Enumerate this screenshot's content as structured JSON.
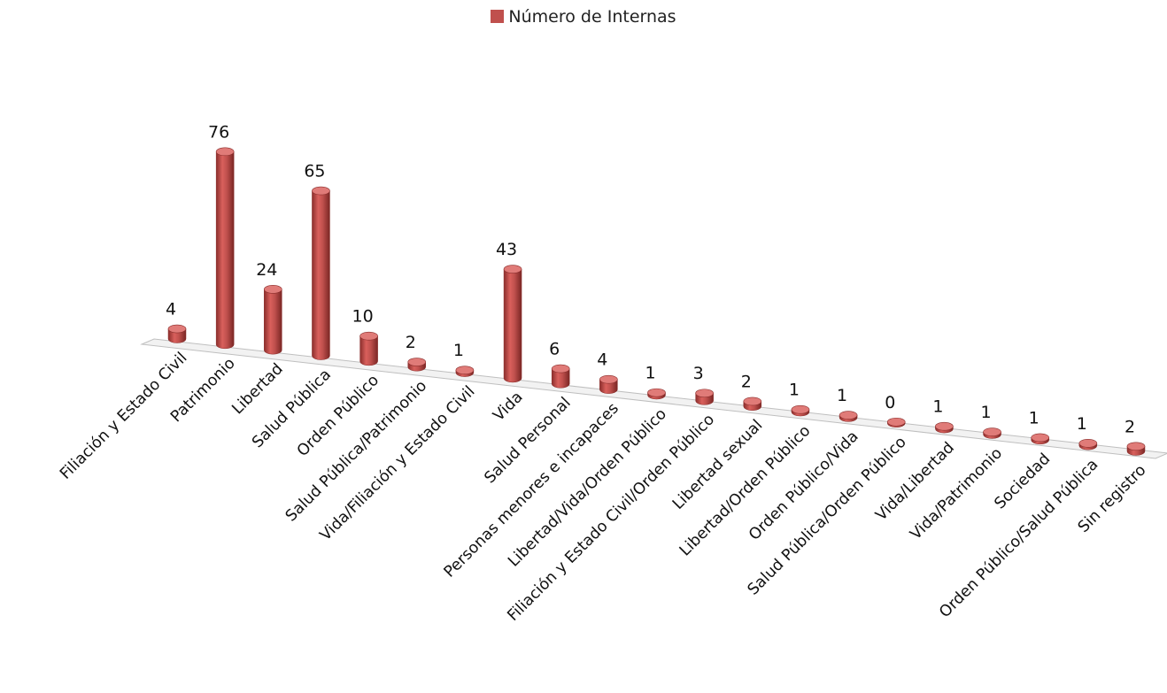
{
  "chart_data": {
    "type": "bar",
    "style": "3d-cylinder",
    "legend_position": "top",
    "series": [
      {
        "name": "Número de Internas",
        "values": [
          4,
          76,
          24,
          65,
          10,
          2,
          1,
          43,
          6,
          4,
          1,
          3,
          2,
          1,
          1,
          0,
          1,
          1,
          1,
          1,
          2
        ]
      }
    ],
    "categories": [
      "Filiación y Estado Civil",
      "Patrimonio",
      "Libertad",
      "Salud Pública",
      "Orden Público",
      "Salud Pública/Patrimonio",
      "Vida/Filiación y Estado Civil",
      "Vida",
      "Salud Personal",
      "Personas menores e incapaces",
      "Libertad/Vida/Orden Público",
      "Filiación y Estado Civil/Orden Público",
      "Libertad sexual",
      "Libertad/Orden Público",
      "Orden Público/Vida",
      "Salud Pública/Orden Público",
      "Vida/Libertad",
      "Vida/Patrimonio",
      "Sociedad",
      "Orden Público/Salud Pública",
      "Sin registro"
    ],
    "data_labels": true,
    "colors": {
      "bar": "#c0504d",
      "bar_dark": "#8b2e2c",
      "bar_light": "#e07b78",
      "floor": "#bfbfbf"
    }
  }
}
